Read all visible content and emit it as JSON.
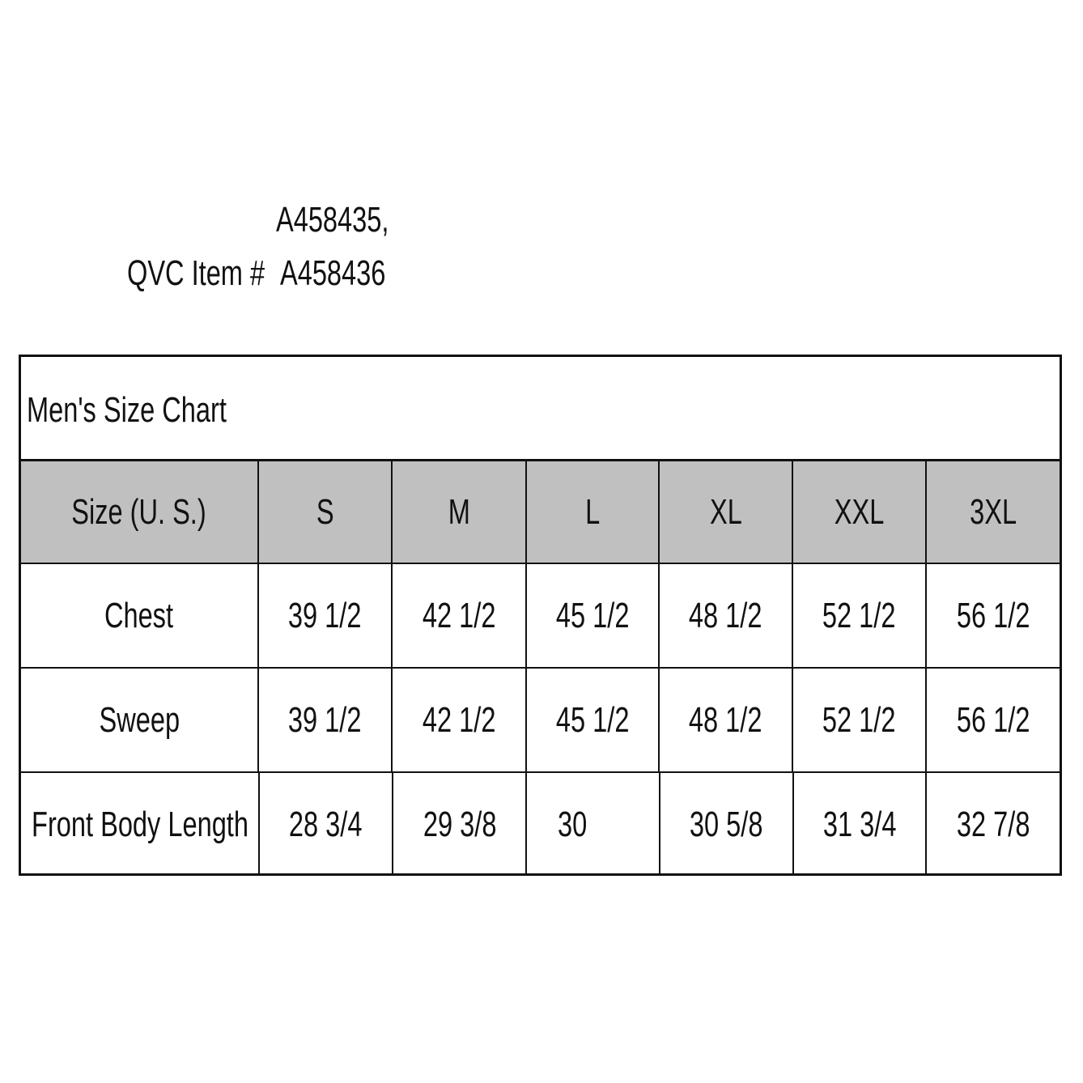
{
  "item_info": {
    "label": "QVC Item #",
    "numbers_line1": "A458435,",
    "numbers_line2": "A458436"
  },
  "table": {
    "title": "Men's Size Chart",
    "header_bg": "#c0c0c0",
    "headers": [
      "Size (U. S.)",
      "S",
      "M",
      "L",
      "XL",
      "XXL",
      "3XL"
    ],
    "rows": [
      {
        "label": "Chest",
        "values": [
          "39 1/2",
          "42 1/2",
          "45 1/2",
          "48 1/2",
          "52 1/2",
          "56 1/2"
        ]
      },
      {
        "label": "Sweep",
        "values": [
          "39 1/2",
          "42 1/2",
          "45 1/2",
          "48 1/2",
          "52 1/2",
          "56 1/2"
        ]
      },
      {
        "label": "Front Body Length",
        "values": [
          "28 3/4",
          "29 3/8",
          "30",
          "30 5/8",
          "31 3/4",
          "32 7/8"
        ]
      }
    ]
  }
}
